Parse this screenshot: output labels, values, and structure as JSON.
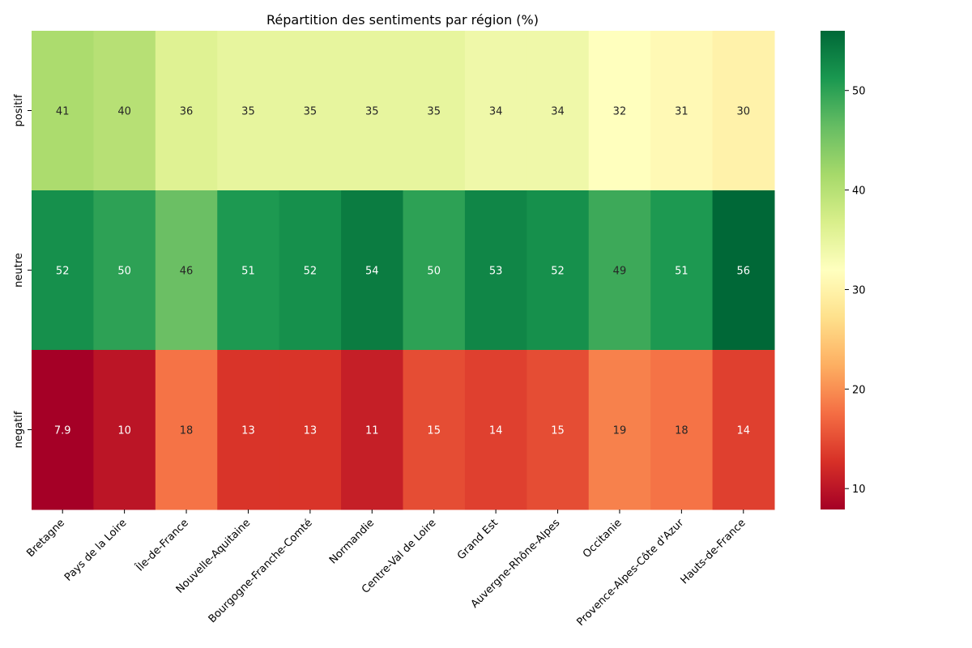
{
  "chart_data": {
    "type": "heatmap",
    "title": "Répartition des sentiments par région (%)",
    "xlabel": "",
    "ylabel": "",
    "x_categories": [
      "Bretagne",
      "Pays de la Loire",
      "Île-de-France",
      "Nouvelle-Aquitaine",
      "Bourgogne-Franche-Comté",
      "Normandie",
      "Centre-Val de Loire",
      "Grand Est",
      "Auvergne-Rhône-Alpes",
      "Occitanie",
      "Provence-Alpes-Côte d'Azur",
      "Hauts-de-France"
    ],
    "y_categories": [
      "positif",
      "neutre",
      "negatif"
    ],
    "values": [
      [
        41,
        40,
        36,
        35,
        35,
        35,
        35,
        34,
        34,
        32,
        31,
        30
      ],
      [
        52,
        50,
        46,
        51,
        52,
        54,
        50,
        53,
        52,
        49,
        51,
        56
      ],
      [
        7.9,
        10,
        18,
        13,
        13,
        11,
        15,
        14,
        15,
        19,
        18,
        14
      ]
    ],
    "labels": [
      [
        "41",
        "40",
        "36",
        "35",
        "35",
        "35",
        "35",
        "34",
        "34",
        "32",
        "31",
        "30"
      ],
      [
        "52",
        "50",
        "46",
        "51",
        "52",
        "54",
        "50",
        "53",
        "52",
        "49",
        "51",
        "56"
      ],
      [
        "7.9",
        "10",
        "18",
        "13",
        "13",
        "11",
        "15",
        "14",
        "15",
        "19",
        "18",
        "14"
      ]
    ],
    "colormap": "RdYlGn",
    "colorbar": {
      "range": [
        7.9,
        56
      ],
      "ticks": [
        10,
        20,
        30,
        40,
        50
      ],
      "tick_labels": [
        "10",
        "20",
        "30",
        "40",
        "50"
      ]
    },
    "grid": false,
    "legend": "colorbar-right"
  }
}
